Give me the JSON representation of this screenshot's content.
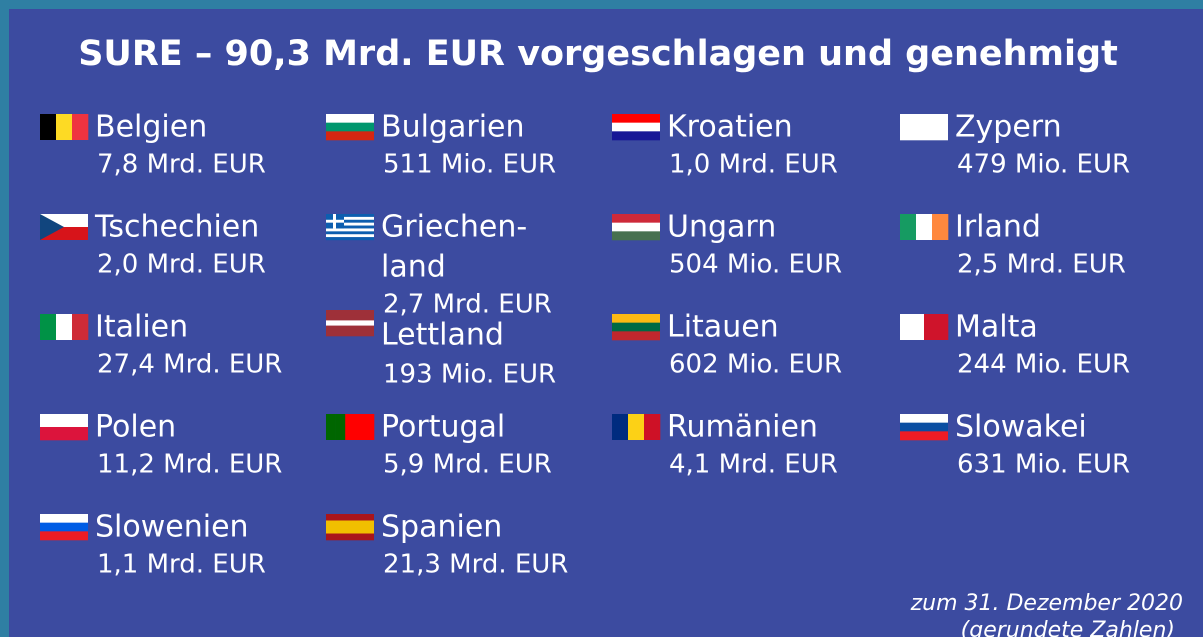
{
  "title": "SURE – 90,3 Mrd. EUR vorgeschlagen und genehmigt",
  "countries": [
    {
      "name_lines": [
        "Belgien"
      ],
      "amount": "7,8 Mrd. EUR"
    },
    {
      "name_lines": [
        "Bulgarien"
      ],
      "amount": "511 Mio. EUR"
    },
    {
      "name_lines": [
        "Kroatien"
      ],
      "amount": "1,0 Mrd. EUR"
    },
    {
      "name_lines": [
        "Zypern"
      ],
      "amount": "479 Mio. EUR"
    },
    {
      "name_lines": [
        "Tschechien"
      ],
      "amount": "2,0 Mrd. EUR"
    },
    {
      "name_lines": [
        "Griechen-",
        "land"
      ],
      "amount": "2,7 Mrd. EUR"
    },
    {
      "name_lines": [
        "Ungarn"
      ],
      "amount": "504 Mio. EUR"
    },
    {
      "name_lines": [
        "Irland"
      ],
      "amount": "2,5 Mrd. EUR"
    },
    {
      "name_lines": [
        "Italien"
      ],
      "amount": "27,4 Mrd. EUR"
    },
    {
      "name_lines": [
        "Lettland"
      ],
      "amount": "193 Mio. EUR"
    },
    {
      "name_lines": [
        "Litauen"
      ],
      "amount": "602 Mio. EUR"
    },
    {
      "name_lines": [
        "Malta"
      ],
      "amount": "244 Mio. EUR"
    },
    {
      "name_lines": [
        "Polen"
      ],
      "amount": "11,2 Mrd. EUR"
    },
    {
      "name_lines": [
        "Portugal"
      ],
      "amount": "5,9 Mrd. EUR"
    },
    {
      "name_lines": [
        "Rumänien"
      ],
      "amount": "4,1 Mrd. EUR"
    },
    {
      "name_lines": [
        "Slowakei"
      ],
      "amount": "631 Mio. EUR"
    },
    {
      "name_lines": [
        "Slowenien"
      ],
      "amount": "1,1 Mrd. EUR"
    },
    {
      "name_lines": [
        "Spanien"
      ],
      "amount": "21,3 Mrd. EUR"
    }
  ],
  "footnote": [
    "zum 31. Dezember 2020",
    "(gerundete Zahlen)"
  ]
}
